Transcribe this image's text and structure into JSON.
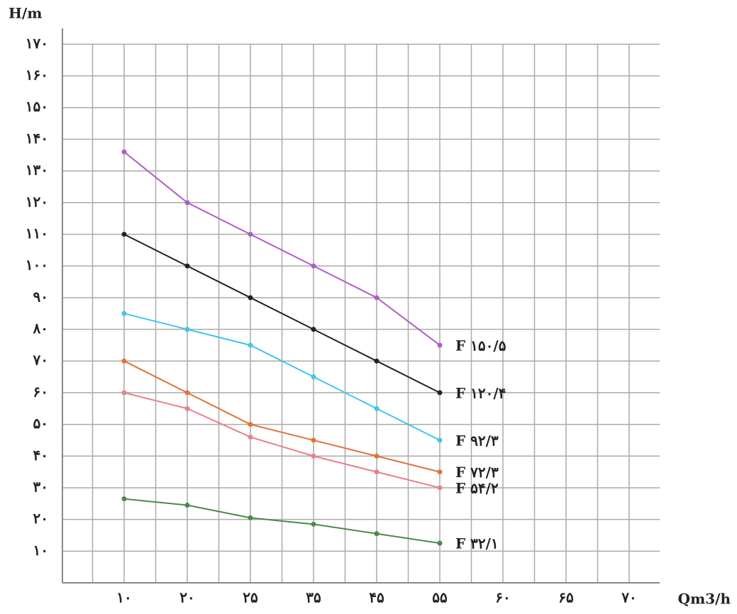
{
  "chart_data": {
    "type": "line",
    "y_label": "H/m",
    "x_label": "Qm3/h",
    "categories": [
      "۱۰",
      "۲۰",
      "۲۵",
      "۳۵",
      "۴۵",
      "۵۵",
      "۶۰",
      "۶۵",
      "۷۰"
    ],
    "series": [
      {
        "name": "F ۱۵۰/۵",
        "color": "#b05cc4",
        "values": [
          136,
          120,
          110,
          100,
          90,
          75,
          null,
          null,
          null
        ]
      },
      {
        "name": "F ۱۲۰/۴",
        "color": "#222222",
        "values": [
          110,
          100,
          90,
          80,
          70,
          60,
          null,
          null,
          null
        ]
      },
      {
        "name": "F ۹۲/۳",
        "color": "#3fc6ea",
        "values": [
          85,
          80,
          75,
          65,
          55,
          45,
          null,
          null,
          null
        ]
      },
      {
        "name": "F ۷۲/۳",
        "color": "#e0733a",
        "values": [
          70,
          60,
          50,
          45,
          40,
          35,
          null,
          null,
          null
        ]
      },
      {
        "name": "F ۵۴/۲",
        "color": "#e8808a",
        "values": [
          60,
          55,
          46,
          40,
          35,
          30,
          null,
          null,
          null
        ]
      },
      {
        "name": "F ۳۲/۱",
        "color": "#4a8a4a",
        "values": [
          26.5,
          24.5,
          20.5,
          18.5,
          15.5,
          12.5,
          null,
          null,
          null
        ]
      }
    ],
    "ylim": [
      0,
      175
    ],
    "yticks": [
      {
        "value": 10,
        "label": "۱۰"
      },
      {
        "value": 20,
        "label": "۲۰"
      },
      {
        "value": 30,
        "label": "۳۰"
      },
      {
        "value": 40,
        "label": "۴۰"
      },
      {
        "value": 50,
        "label": "۵۰"
      },
      {
        "value": 60,
        "label": "۶۰"
      },
      {
        "value": 70,
        "label": "۷۰"
      },
      {
        "value": 80,
        "label": "۸۰"
      },
      {
        "value": 90,
        "label": "۹۰"
      },
      {
        "value": 100,
        "label": "۱۰۰"
      },
      {
        "value": 110,
        "label": "۱۱۰"
      },
      {
        "value": 120,
        "label": "۱۲۰"
      },
      {
        "value": 130,
        "label": "۱۳۰"
      },
      {
        "value": 140,
        "label": "۱۴۰"
      },
      {
        "value": 150,
        "label": "۱۵۰"
      },
      {
        "value": 160,
        "label": "۱۶۰"
      },
      {
        "value": 170,
        "label": "۱۷۰"
      }
    ],
    "grid": true
  }
}
